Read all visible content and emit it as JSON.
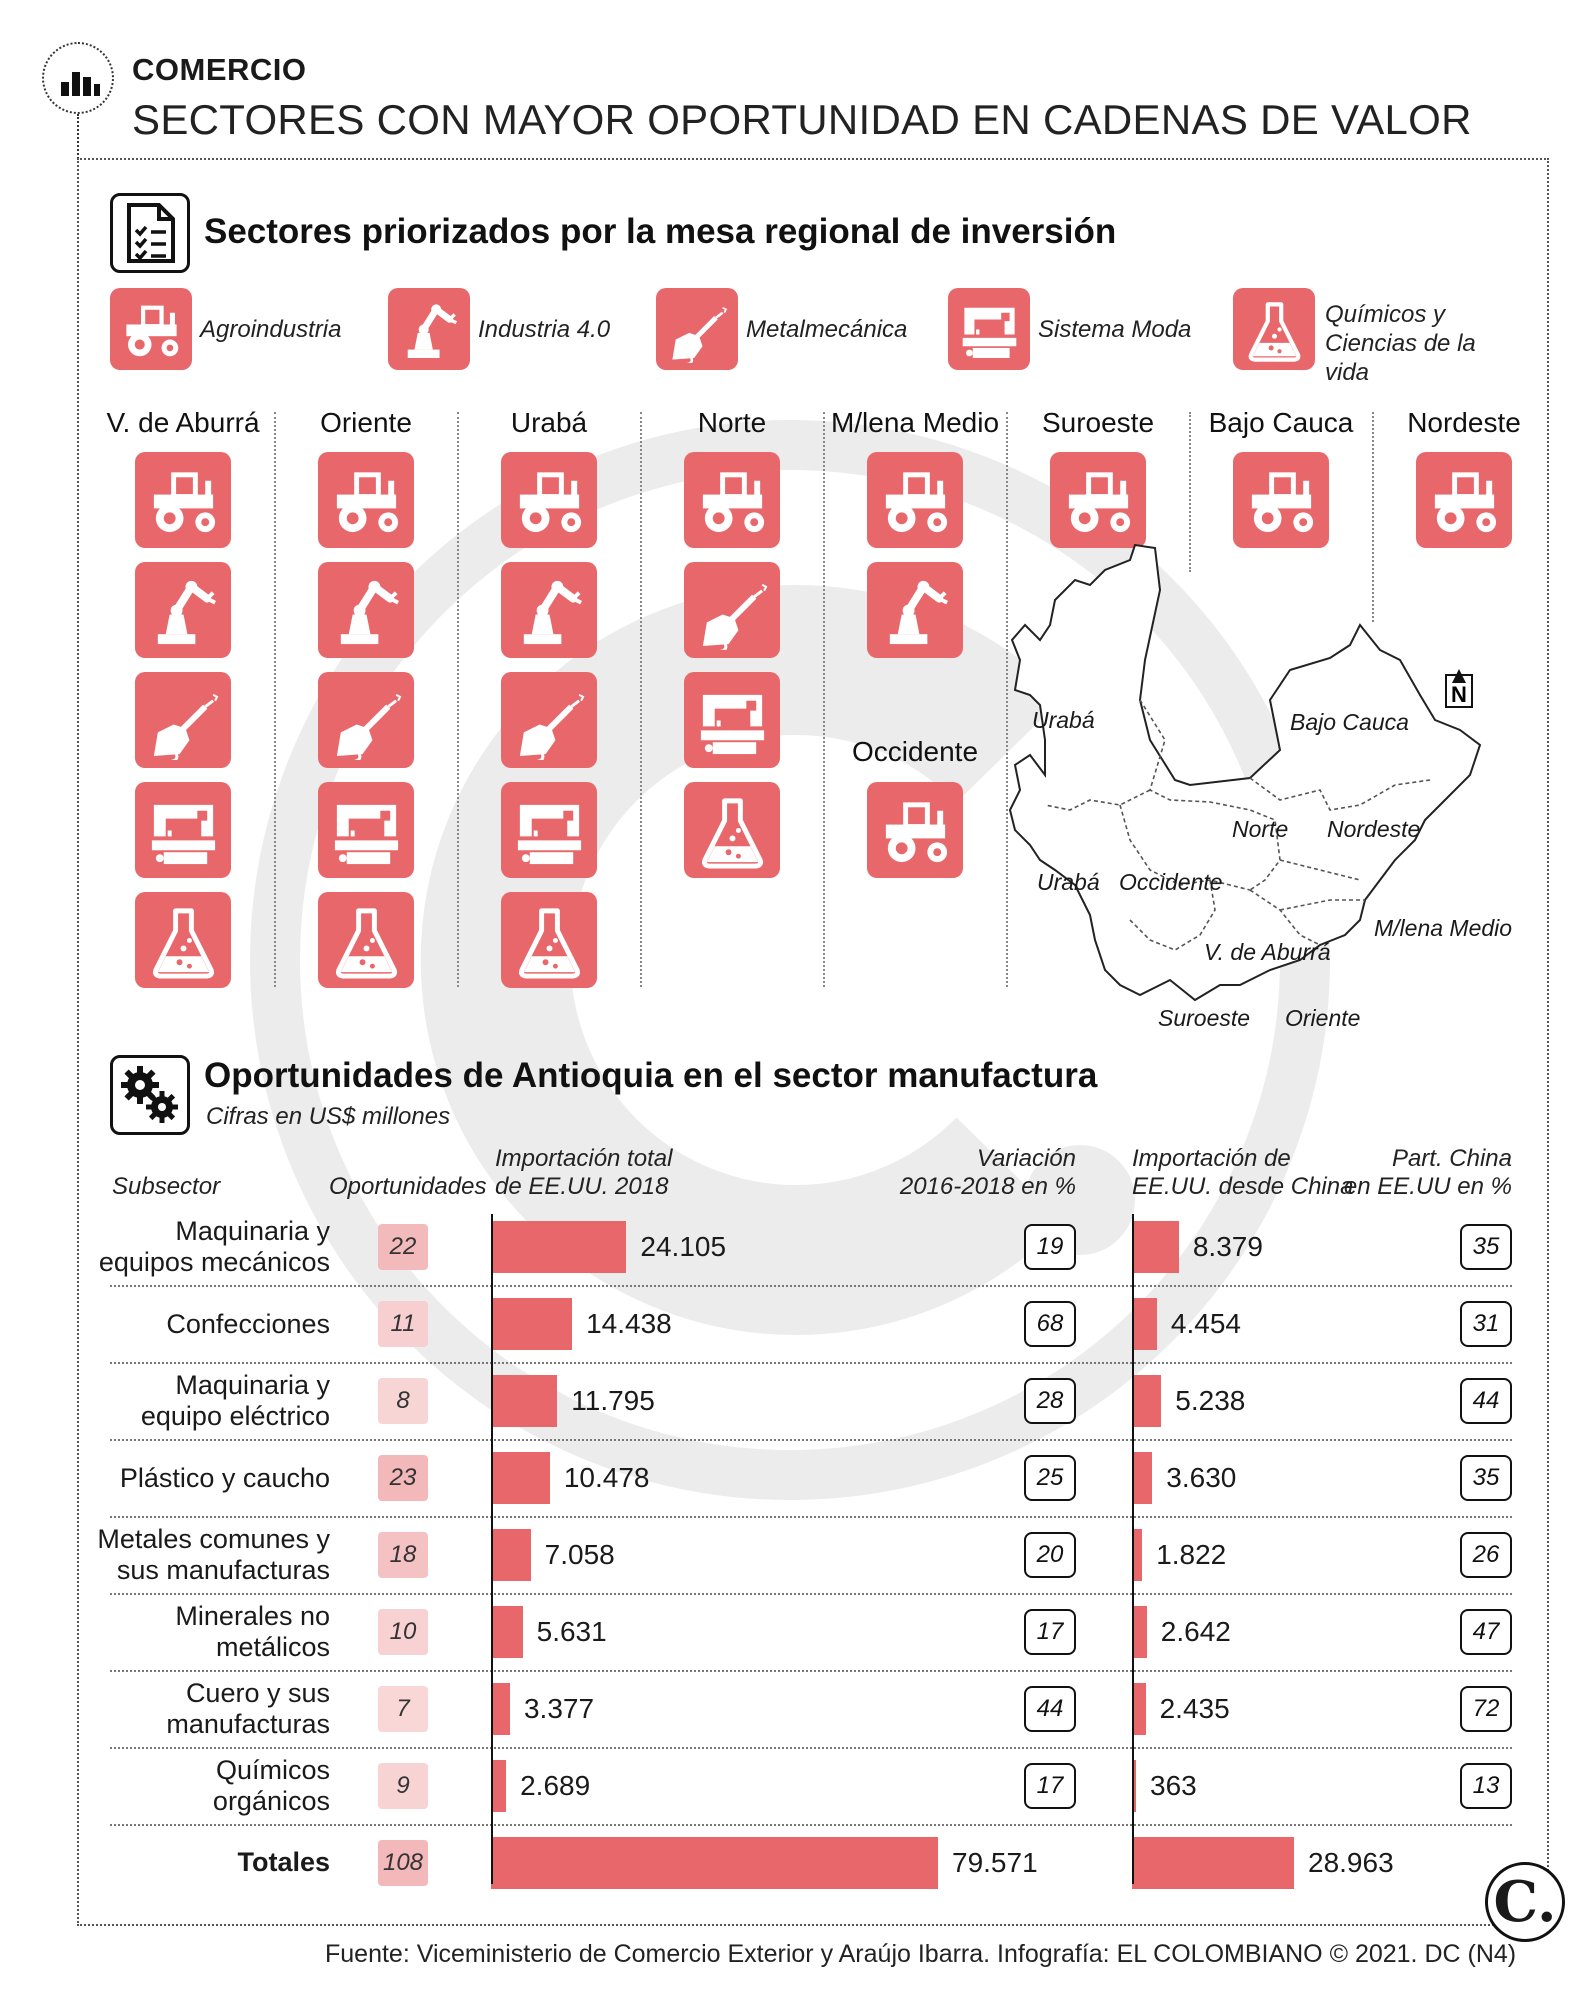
{
  "header": {
    "kicker": "COMERCIO",
    "headline": "SECTORES CON MAYOR OPORTUNIDAD EN CADENAS DE VALOR"
  },
  "section1": {
    "title": "Sectores priorizados por la mesa regional de inversión",
    "legend": [
      {
        "label": "Agroindustria",
        "icon": "tractor-icon"
      },
      {
        "label": "Industria 4.0",
        "icon": "robot-arm-icon"
      },
      {
        "label": "Metalmecánica",
        "icon": "welding-torch-icon"
      },
      {
        "label": "Sistema Moda",
        "icon": "sewing-machine-icon"
      },
      {
        "label": "Químicos y Ciencias de la vida",
        "icon": "flask-icon"
      }
    ],
    "regions": [
      {
        "name": "V. de Aburrá",
        "sectors": [
          "tractor",
          "robot",
          "torch",
          "sewing",
          "flask"
        ]
      },
      {
        "name": "Oriente",
        "sectors": [
          "tractor",
          "robot",
          "torch",
          "sewing",
          "flask"
        ]
      },
      {
        "name": "Urabá",
        "sectors": [
          "tractor",
          "robot",
          "torch",
          "sewing",
          "flask"
        ]
      },
      {
        "name": "Norte",
        "sectors": [
          "tractor",
          "torch",
          "sewing",
          "flask"
        ]
      },
      {
        "name": "M/lena Medio",
        "sectors": [
          "tractor",
          "robot"
        ]
      },
      {
        "name": "Suroeste",
        "sectors": [
          "tractor"
        ]
      },
      {
        "name": "Bajo Cauca",
        "sectors": [
          "tractor"
        ]
      },
      {
        "name": "Nordeste",
        "sectors": [
          "tractor"
        ]
      }
    ],
    "extra_region": {
      "name": "Occidente",
      "sectors": [
        "tractor"
      ]
    },
    "map": {
      "north_label": "N",
      "labels": [
        "Urabá",
        "Bajo Cauca",
        "Norte",
        "Nordeste",
        "Urabá",
        "Occidente",
        "M/lena Medio",
        "V. de Aburrá",
        "Suroeste",
        "Oriente"
      ]
    }
  },
  "section2": {
    "title": "Oportunidades de Antioquia en el sector manufactura",
    "subtitle": "Cifras en US$ millones",
    "headers": {
      "subsector": "Subsector",
      "oportunidades": "Oportunidades",
      "import_total_1": "Importación total",
      "import_total_2": "de EE.UU. 2018",
      "variacion_1": "Variación",
      "variacion_2": "2016-2018 en %",
      "import_china_1": "Importación de",
      "import_china_2": "EE.UU. desde China",
      "part_china_1": "Part. China",
      "part_china_2": "en EE.UU en %"
    }
  },
  "chart_data": {
    "type": "bar",
    "title": "Oportunidades de Antioquia en el sector manufactura",
    "subtitle": "Cifras en US$ millones",
    "categories": [
      "Maquinaria y equipos mecánicos",
      "Confecciones",
      "Maquinaria y equipo eléctrico",
      "Plástico y caucho",
      "Metales comunes y sus manufacturas",
      "Minerales no metálicos",
      "Cuero y sus manufacturas",
      "Químicos orgánicos"
    ],
    "category_lines": [
      [
        "Maquinaria y",
        "equipos mecánicos"
      ],
      [
        "Confecciones"
      ],
      [
        "Maquinaria y",
        "equipo eléctrico"
      ],
      [
        "Plástico y caucho"
      ],
      [
        "Metales comunes y",
        "sus manufacturas"
      ],
      [
        "Minerales no",
        "metálicos"
      ],
      [
        "Cuero y sus",
        "manufacturas"
      ],
      [
        "Químicos",
        "orgánicos"
      ]
    ],
    "oportunidades": [
      22,
      11,
      8,
      23,
      18,
      10,
      7,
      9
    ],
    "series": [
      {
        "name": "Importación total de EE.UU. 2018",
        "values": [
          24105,
          14438,
          11795,
          10478,
          7058,
          5631,
          3377,
          2689
        ],
        "labels": [
          "24.105",
          "14.438",
          "11.795",
          "10.478",
          "7.058",
          "5.631",
          "3.377",
          "2.689"
        ]
      },
      {
        "name": "Variación 2016-2018 en %",
        "values": [
          19,
          68,
          28,
          25,
          20,
          17,
          44,
          17
        ]
      },
      {
        "name": "Importación de EE.UU. desde China",
        "values": [
          8379,
          4454,
          5238,
          3630,
          1822,
          2642,
          2435,
          363
        ],
        "labels": [
          "8.379",
          "4.454",
          "5.238",
          "3.630",
          "1.822",
          "2.642",
          "2.435",
          "363"
        ]
      },
      {
        "name": "Part. China en EE.UU en %",
        "values": [
          35,
          31,
          44,
          35,
          26,
          47,
          72,
          13
        ]
      }
    ],
    "totals": {
      "label": "Totales",
      "oportunidades": 108,
      "import_total": 79571,
      "import_total_label": "79.571",
      "import_china": 28963,
      "import_china_label": "28.963"
    },
    "colors": {
      "bar": "#e8676b",
      "opp_scale": [
        "#fbe4e4",
        "#f3b8ba"
      ]
    }
  },
  "footer": {
    "source": "Fuente: Viceministerio de Comercio Exterior y Araújo Ibarra. Infografía: EL COLOMBIANO © 2021. DC (N4)",
    "brand": "C."
  }
}
